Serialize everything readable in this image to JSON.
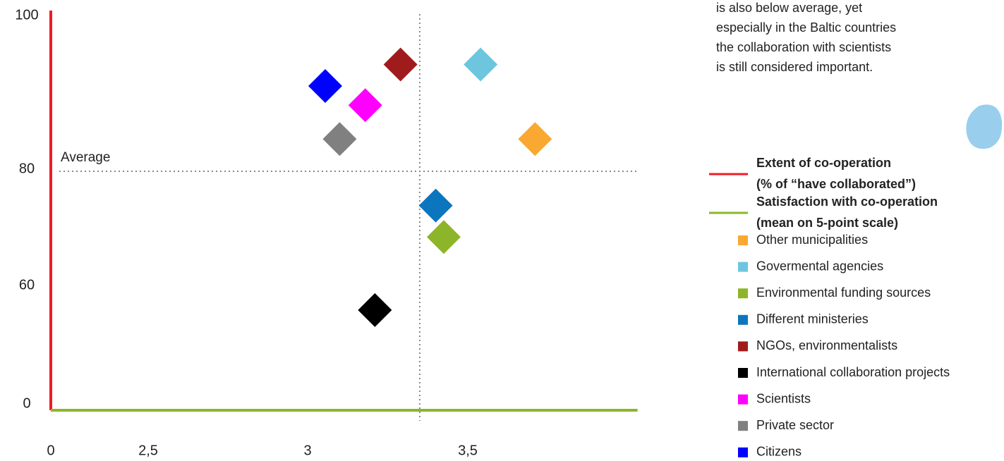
{
  "chart_data": {
    "type": "scatter",
    "xlim": [
      0,
      4.03
    ],
    "ylim": [
      0,
      100
    ],
    "xticks": [
      0,
      {
        "value": 2.5,
        "label": "2,5"
      },
      3,
      {
        "value": 3.5,
        "label": "3,5"
      }
    ],
    "yticks": [
      0,
      60,
      80,
      100
    ],
    "average_x": 3.35,
    "average_y": 80,
    "average_label": "Average",
    "annotation_lines": [
      "is also below average, yet",
      "especially in the Baltic countries",
      "the collaboration with scientists",
      "is still considered important."
    ],
    "axis_legend": [
      {
        "label_lines": [
          "Extent of co-operation",
          "(% of “have collaborated”)"
        ],
        "color": "#ee1c25"
      },
      {
        "label_lines": [
          "Satisfaction with co-operation",
          "(mean on 5-point scale)"
        ],
        "color": "#8db52a"
      }
    ],
    "series": [
      {
        "name": "Other municipalities",
        "color": "#f9a932",
        "x": [
          3.71
        ],
        "values": [
          84.2
        ]
      },
      {
        "name": "Govermental agencies",
        "color": "#6ec6de",
        "x": [
          3.54
        ],
        "values": [
          93.9
        ]
      },
      {
        "name": "Environmental funding sources",
        "color": "#8db52a",
        "x": [
          3.425
        ],
        "values": [
          68.7
        ]
      },
      {
        "name": "Different ministeries",
        "color": "#0b76be",
        "x": [
          3.4
        ],
        "values": [
          74.1
        ]
      },
      {
        "name": "NGOs, environmentalists",
        "color": "#a01c1c",
        "x": [
          3.29
        ],
        "values": [
          93.9
        ]
      },
      {
        "name": "International collaboration projects",
        "color": "#000000",
        "x": [
          3.21
        ],
        "values": [
          48.6
        ]
      },
      {
        "name": "Scientists",
        "color": "#ff00ff",
        "x": [
          3.18
        ],
        "values": [
          88.6
        ]
      },
      {
        "name": "Private sector",
        "color": "#808080",
        "x": [
          3.1
        ],
        "values": [
          84.2
        ]
      },
      {
        "name": "Citizens",
        "color": "#0000ff",
        "x": [
          3.055
        ],
        "values": [
          91.1
        ]
      }
    ]
  }
}
